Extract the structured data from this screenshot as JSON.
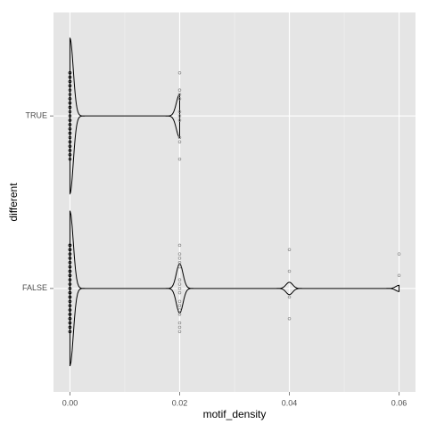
{
  "chart_data": {
    "type": "violin",
    "orientation": "horizontal",
    "x_label": "motif_density",
    "y_label": "different",
    "categories": [
      "FALSE",
      "TRUE"
    ],
    "values": [
      [
        0,
        0,
        0,
        0,
        0,
        0,
        0,
        0,
        0,
        0,
        0,
        0,
        0,
        0,
        0,
        0,
        0,
        0,
        0,
        0,
        0,
        0,
        0,
        0,
        0,
        0,
        0,
        0,
        0,
        0,
        0,
        0,
        0,
        0,
        0,
        0,
        0,
        0,
        0,
        0,
        0,
        0,
        0,
        0,
        0,
        0,
        0,
        0,
        0,
        0,
        0.02,
        0.02,
        0.02,
        0.02,
        0.02,
        0.02,
        0.02,
        0.02,
        0.02,
        0.02,
        0.02,
        0.02,
        0.02,
        0.02,
        0.02,
        0.02,
        0.04,
        0.04,
        0.04,
        0.04,
        0.06,
        0.06
      ],
      [
        0,
        0,
        0,
        0,
        0,
        0,
        0,
        0,
        0,
        0,
        0,
        0,
        0,
        0,
        0,
        0,
        0,
        0,
        0,
        0,
        0,
        0,
        0,
        0,
        0,
        0,
        0,
        0,
        0,
        0,
        0,
        0,
        0,
        0,
        0,
        0,
        0.02,
        0.02,
        0.02,
        0.02,
        0.02,
        0.02,
        0.02,
        0.02,
        0.02,
        0.02
      ]
    ],
    "xlim": [
      -0.003,
      0.063
    ],
    "xticks": [
      {
        "value": 0,
        "label": "0.00"
      },
      0.02,
      0.04,
      0.06
    ],
    "grid": true,
    "line_color": "#000000",
    "point_color": "#8c8c8c",
    "panel_color": "#e5e5e5"
  }
}
